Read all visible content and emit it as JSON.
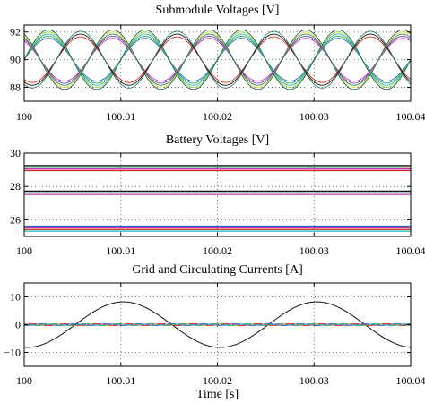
{
  "colors": {
    "black": "#111111",
    "red": "#d42a1e",
    "teal": "#2a7f6a",
    "darkteal": "#1f5f63",
    "green": "#32a852",
    "lime": "#9ed62a",
    "yellow": "#e6e22a",
    "magenta": "#c23bb8",
    "purple": "#7a4bb0",
    "blue": "#2f63c8",
    "cyan": "#27b7c7",
    "grid": "#555555"
  },
  "chart_data": [
    {
      "type": "line",
      "title": "Submodule Voltages [V]",
      "xlabel": "",
      "ylabel": "",
      "xlim": [
        100,
        100.04
      ],
      "ylim": [
        87,
        92.5
      ],
      "xticks": [
        100,
        100.01,
        100.02,
        100.03,
        100.04
      ],
      "xtick_labels": [
        "100",
        "100.01",
        "100.02",
        "100.03",
        "100.04"
      ],
      "yticks": [
        88,
        90,
        92
      ],
      "ytick_labels": [
        "88",
        "90",
        "92"
      ],
      "grid": true,
      "legend": "none",
      "description_of_series": "many submodule voltages oscillating at ~100 Hz between ~88 and ~92 V in three phase groups",
      "series": [
        {
          "mean": 90,
          "amplitude": 1.85,
          "freq_hz": 100,
          "phase_deg": 0,
          "spread": [
            -0.3,
            -0.15,
            0,
            0.15,
            0.3
          ],
          "colors": [
            "#2f63c8",
            "#32a852",
            "#27b7c7",
            "#9ed62a",
            "#1f5f63"
          ]
        },
        {
          "mean": 90,
          "amplitude": 1.85,
          "freq_hz": 100,
          "phase_deg": 120,
          "spread": [
            -0.3,
            -0.15,
            0,
            0.15,
            0.3
          ],
          "colors": [
            "#c23bb8",
            "#7a4bb0",
            "#2a7f6a",
            "#e6e22a",
            "#1f5f63"
          ]
        },
        {
          "mean": 90,
          "amplitude": 1.85,
          "freq_hz": 100,
          "phase_deg": 240,
          "spread": [
            -0.2,
            0,
            0.2
          ],
          "colors": [
            "#d42a1e",
            "#111111",
            "#2a7f6a"
          ]
        }
      ]
    },
    {
      "type": "line",
      "title": "Battery Voltages [V]",
      "xlabel": "",
      "ylabel": "",
      "xlim": [
        100,
        100.04
      ],
      "ylim": [
        25,
        30
      ],
      "xticks": [
        100,
        100.01,
        100.02,
        100.03,
        100.04
      ],
      "xtick_labels": [
        "100",
        "100.01",
        "100.02",
        "100.03",
        "100.04"
      ],
      "yticks": [
        26,
        28,
        30
      ],
      "ytick_labels": [
        "26",
        "28",
        "30"
      ],
      "grid": true,
      "legend": "none",
      "series": [
        {
          "level": 29.25,
          "color": "#111111"
        },
        {
          "level": 29.15,
          "color": "#32a852"
        },
        {
          "level": 29.05,
          "color": "#c23bb8"
        },
        {
          "level": 28.95,
          "color": "#d42a1e"
        },
        {
          "level": 27.72,
          "color": "#111111"
        },
        {
          "level": 27.62,
          "color": "#2a7f6a"
        },
        {
          "level": 27.52,
          "color": "#c23bb8"
        },
        {
          "level": 25.62,
          "color": "#2f63c8"
        },
        {
          "level": 25.52,
          "color": "#c23bb8"
        },
        {
          "level": 25.42,
          "color": "#d42a1e"
        },
        {
          "level": 25.32,
          "color": "#27b7c7"
        }
      ]
    },
    {
      "type": "line",
      "title": "Grid and Circulating Currents [A]",
      "xlabel": "Time [s]",
      "ylabel": "",
      "xlim": [
        100,
        100.04
      ],
      "ylim": [
        -15,
        15
      ],
      "xticks": [
        100,
        100.01,
        100.02,
        100.03,
        100.04
      ],
      "xtick_labels": [
        "100",
        "100.01",
        "100.02",
        "100.03",
        "100.04"
      ],
      "yticks": [
        -10,
        0,
        10
      ],
      "ytick_labels": [
        "−10",
        "0",
        "10"
      ],
      "grid": true,
      "legend": "none",
      "series": [
        {
          "kind": "grid_current",
          "amplitude": 8.2,
          "freq_hz": 50,
          "phase_deg": -95,
          "color": "#111111"
        },
        {
          "kind": "circulating",
          "amplitude": 0.35,
          "freq_hz": 300,
          "phase_deg": 0,
          "color": "#d42a1e"
        },
        {
          "kind": "circulating",
          "amplitude": 0.3,
          "freq_hz": 300,
          "phase_deg": 120,
          "color": "#32a852"
        },
        {
          "kind": "circulating",
          "amplitude": 0.3,
          "freq_hz": 300,
          "phase_deg": 240,
          "color": "#2f63c8"
        }
      ]
    }
  ]
}
